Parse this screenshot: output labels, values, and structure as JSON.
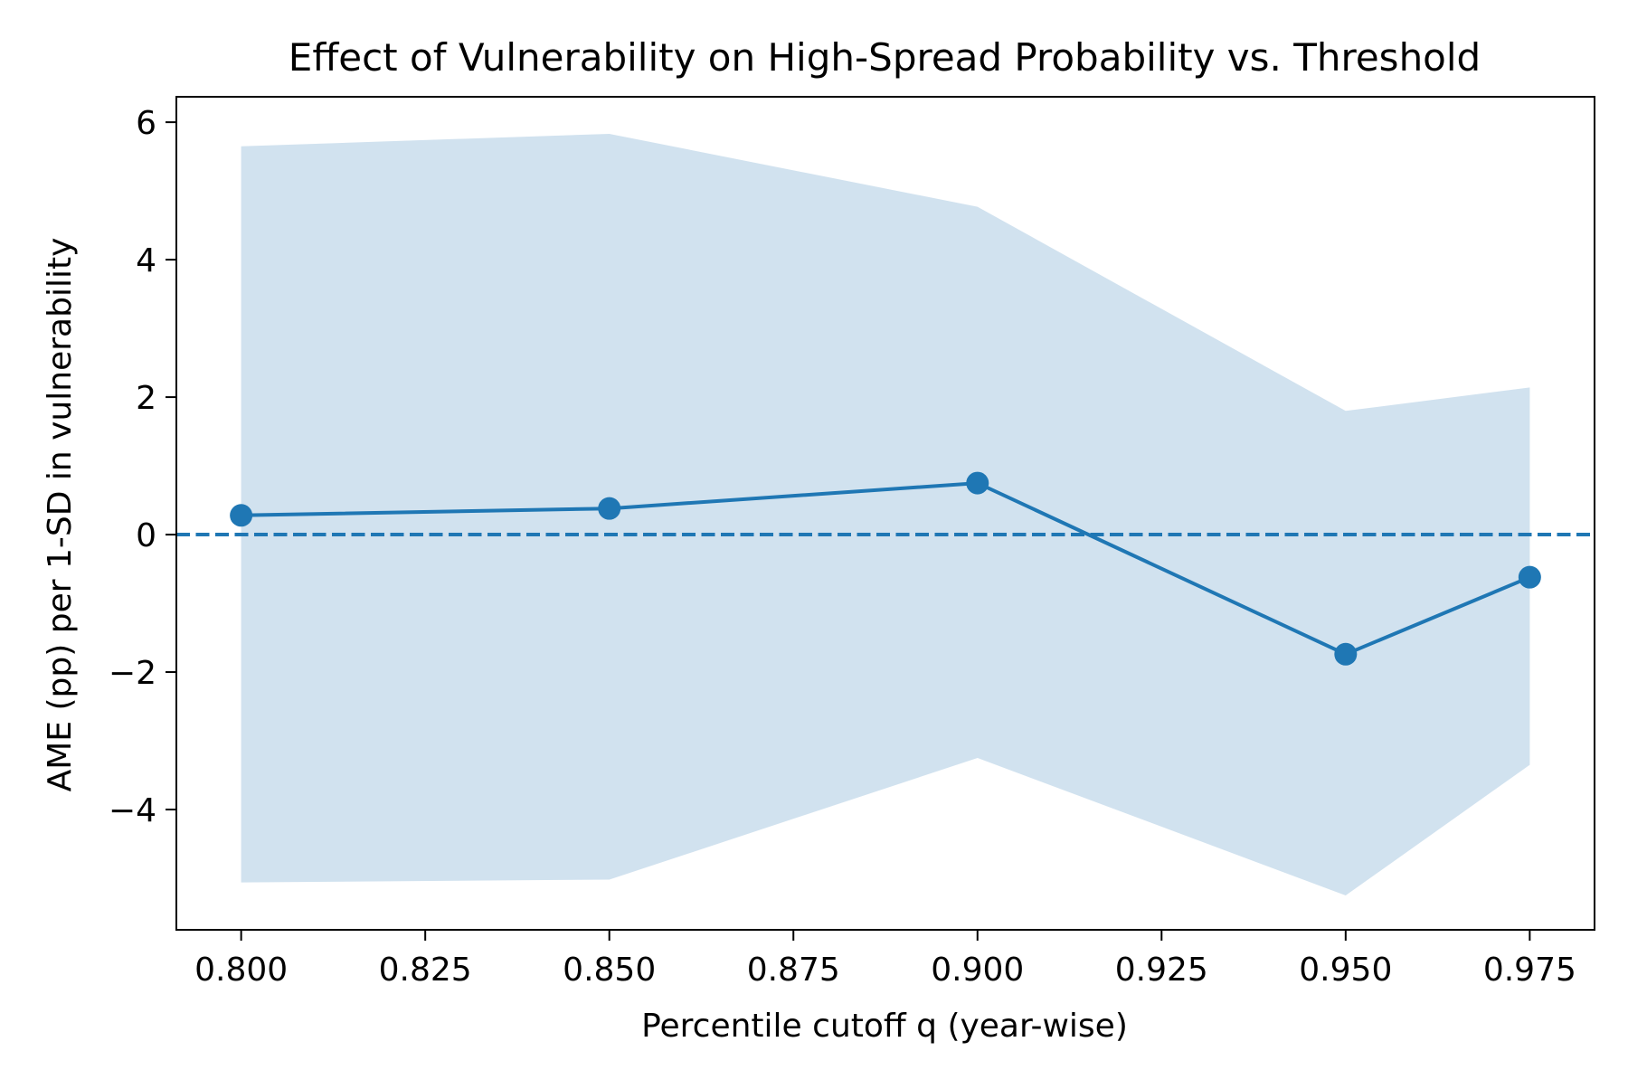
{
  "chart_data": {
    "type": "line",
    "title": "Effect of Vulnerability on High-Spread Probability vs. Threshold",
    "xlabel": "Percentile cutoff q (year-wise)",
    "ylabel": "AME (pp) per 1-SD in vulnerability",
    "xlim": [
      0.7912,
      0.9838
    ],
    "ylim": [
      -5.75,
      6.37
    ],
    "xticks": [
      0.8,
      0.825,
      0.85,
      0.875,
      0.9,
      0.925,
      0.95,
      0.975
    ],
    "xtick_labels": [
      "0.800",
      "0.825",
      "0.850",
      "0.875",
      "0.900",
      "0.925",
      "0.950",
      "0.975"
    ],
    "yticks": [
      -4,
      -2,
      0,
      2,
      4,
      6
    ],
    "ytick_labels": [
      "−4",
      "−2",
      "0",
      "2",
      "4",
      "6"
    ],
    "reference_line": {
      "y": 0,
      "style": "dashed"
    },
    "grid": false,
    "series": [
      {
        "x": [
          0.8,
          0.85,
          0.9,
          0.95,
          0.975
        ],
        "values": [
          0.28,
          0.38,
          0.75,
          -1.74,
          -0.62
        ],
        "ci_lower": [
          -5.06,
          -5.02,
          -3.25,
          -5.25,
          -3.35
        ],
        "ci_upper": [
          5.65,
          5.83,
          4.77,
          1.8,
          2.14
        ]
      }
    ],
    "colors": {
      "line": "#1f77b4",
      "band": "#d1e2ef",
      "reference_line": "#1f77b4",
      "axes": "#000000"
    }
  }
}
